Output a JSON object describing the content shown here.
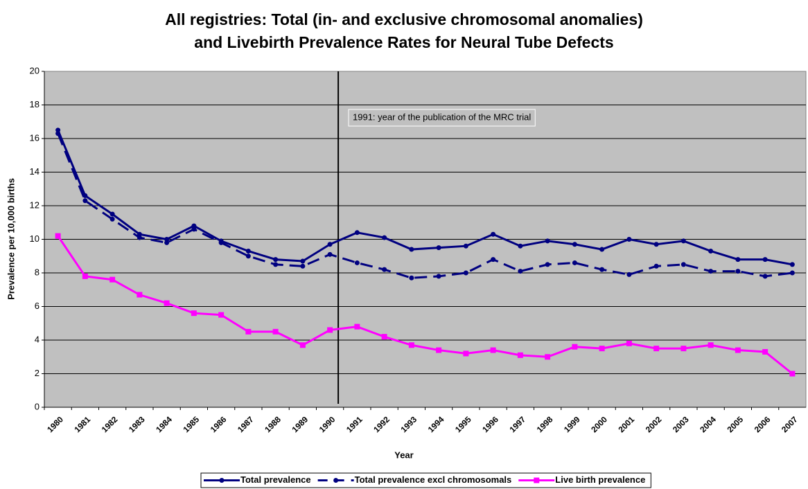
{
  "chart_data": {
    "type": "line",
    "title": [
      "All registries: Total (in- and exclusive chromosomal anomalies)",
      "and Livebirth Prevalence Rates for Neural Tube Defects"
    ],
    "x_label": "Year",
    "y_label": "Prevalence per 10,000 births",
    "annotation": "1991: year of the publication of the MRC trial",
    "categories": [
      "1980",
      "1981",
      "1982",
      "1983",
      "1984",
      "1985",
      "1986",
      "1987",
      "1988",
      "1989",
      "1990",
      "1991",
      "1992",
      "1993",
      "1994",
      "1995",
      "1996",
      "1997",
      "1998",
      "1999",
      "2000",
      "2001",
      "2002",
      "2003",
      "2004",
      "2005",
      "2006",
      "2007"
    ],
    "series": [
      {
        "name": "Total prevalence",
        "color": "#000080",
        "marker": "circle",
        "dashed": false,
        "values": [
          16.5,
          12.6,
          11.5,
          10.3,
          10.0,
          10.8,
          9.9,
          9.3,
          8.8,
          8.7,
          9.7,
          10.4,
          10.1,
          9.4,
          9.5,
          9.6,
          10.3,
          9.6,
          9.9,
          9.7,
          9.4,
          10.0,
          9.7,
          9.9,
          9.3,
          8.8,
          8.8,
          8.5
        ]
      },
      {
        "name": "Total prevalence excl chromosomals",
        "color": "#000080",
        "marker": "circle",
        "dashed": true,
        "values": [
          16.3,
          12.3,
          11.2,
          10.1,
          9.8,
          10.6,
          9.8,
          9.0,
          8.5,
          8.4,
          9.1,
          8.6,
          8.2,
          7.7,
          7.8,
          8.0,
          8.8,
          8.1,
          8.5,
          8.6,
          8.2,
          7.9,
          8.4,
          8.5,
          8.1,
          8.1,
          7.8,
          8.0
        ]
      },
      {
        "name": "Live birth prevalence",
        "color": "#ff00ff",
        "marker": "square",
        "dashed": false,
        "values": [
          10.2,
          7.8,
          7.6,
          6.7,
          6.2,
          5.6,
          5.5,
          4.5,
          4.5,
          3.7,
          4.6,
          4.8,
          4.2,
          3.7,
          3.4,
          3.2,
          3.4,
          3.1,
          3.0,
          3.6,
          3.5,
          3.8,
          3.5,
          3.5,
          3.7,
          3.4,
          3.3,
          2.0
        ]
      }
    ],
    "ylim": [
      0,
      20
    ],
    "yticks": [
      0,
      2,
      4,
      6,
      8,
      10,
      12,
      14,
      16,
      18,
      20
    ],
    "grid": true,
    "legend": "bottom"
  }
}
